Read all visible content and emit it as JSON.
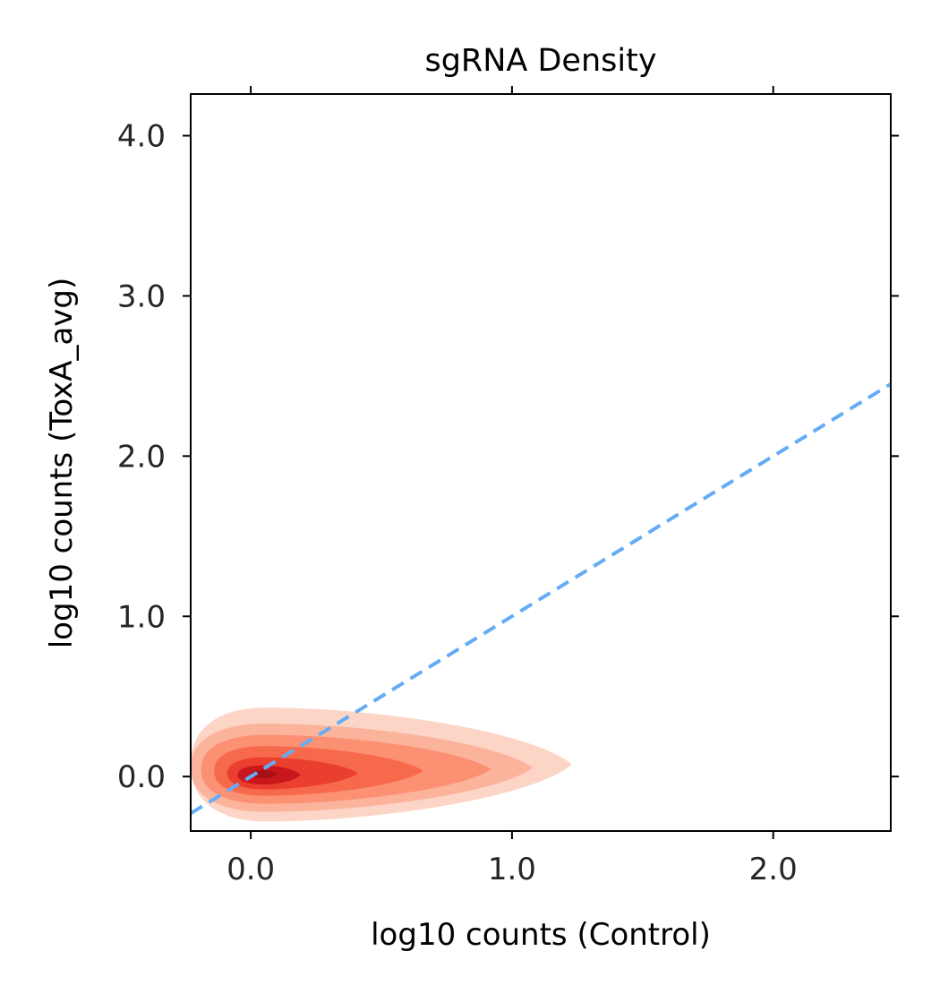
{
  "chart_data": {
    "type": "contour",
    "title": "sgRNA Density",
    "xlabel": "log10 counts (Control)",
    "ylabel": "log10 counts (ToxA_avg)",
    "xlim": [
      -0.23,
      2.45
    ],
    "ylim": [
      -0.34,
      4.26
    ],
    "xticks": [
      0.0,
      1.0,
      2.0
    ],
    "yticks": [
      0.0,
      1.0,
      2.0,
      3.0,
      4.0
    ],
    "xtick_labels": [
      "0.0",
      "1.0",
      "2.0"
    ],
    "ytick_labels": [
      "0.0",
      "1.0",
      "2.0",
      "3.0",
      "4.0"
    ],
    "grid": false,
    "legend": "none",
    "density_peak": {
      "x": 0.05,
      "y": 0.02
    },
    "contour_levels": [
      {
        "level": 1,
        "color": "#fcd5c6",
        "x_min": -0.23,
        "x_max": 1.23,
        "y_min": -0.28,
        "y_max": 0.43
      },
      {
        "level": 2,
        "color": "#fcb39b",
        "x_min": -0.23,
        "x_max": 1.08,
        "y_min": -0.22,
        "y_max": 0.33
      },
      {
        "level": 3,
        "color": "#fb9073",
        "x_min": -0.19,
        "x_max": 0.92,
        "y_min": -0.17,
        "y_max": 0.26
      },
      {
        "level": 4,
        "color": "#f7694b",
        "x_min": -0.14,
        "x_max": 0.66,
        "y_min": -0.12,
        "y_max": 0.19
      },
      {
        "level": 5,
        "color": "#ea3e2f",
        "x_min": -0.09,
        "x_max": 0.41,
        "y_min": -0.08,
        "y_max": 0.12
      },
      {
        "level": 6,
        "color": "#c9181d",
        "x_min": -0.05,
        "x_max": 0.19,
        "y_min": -0.05,
        "y_max": 0.07
      },
      {
        "level": 7,
        "color": "#a50f15",
        "x_min": 0.0,
        "x_max": 0.1,
        "y_min": -0.01,
        "y_max": 0.04
      }
    ],
    "reference_line": {
      "style": "dashed",
      "color": "#64acf5",
      "slope": 1,
      "intercept": 0,
      "x_range": [
        -0.23,
        2.45
      ]
    }
  }
}
